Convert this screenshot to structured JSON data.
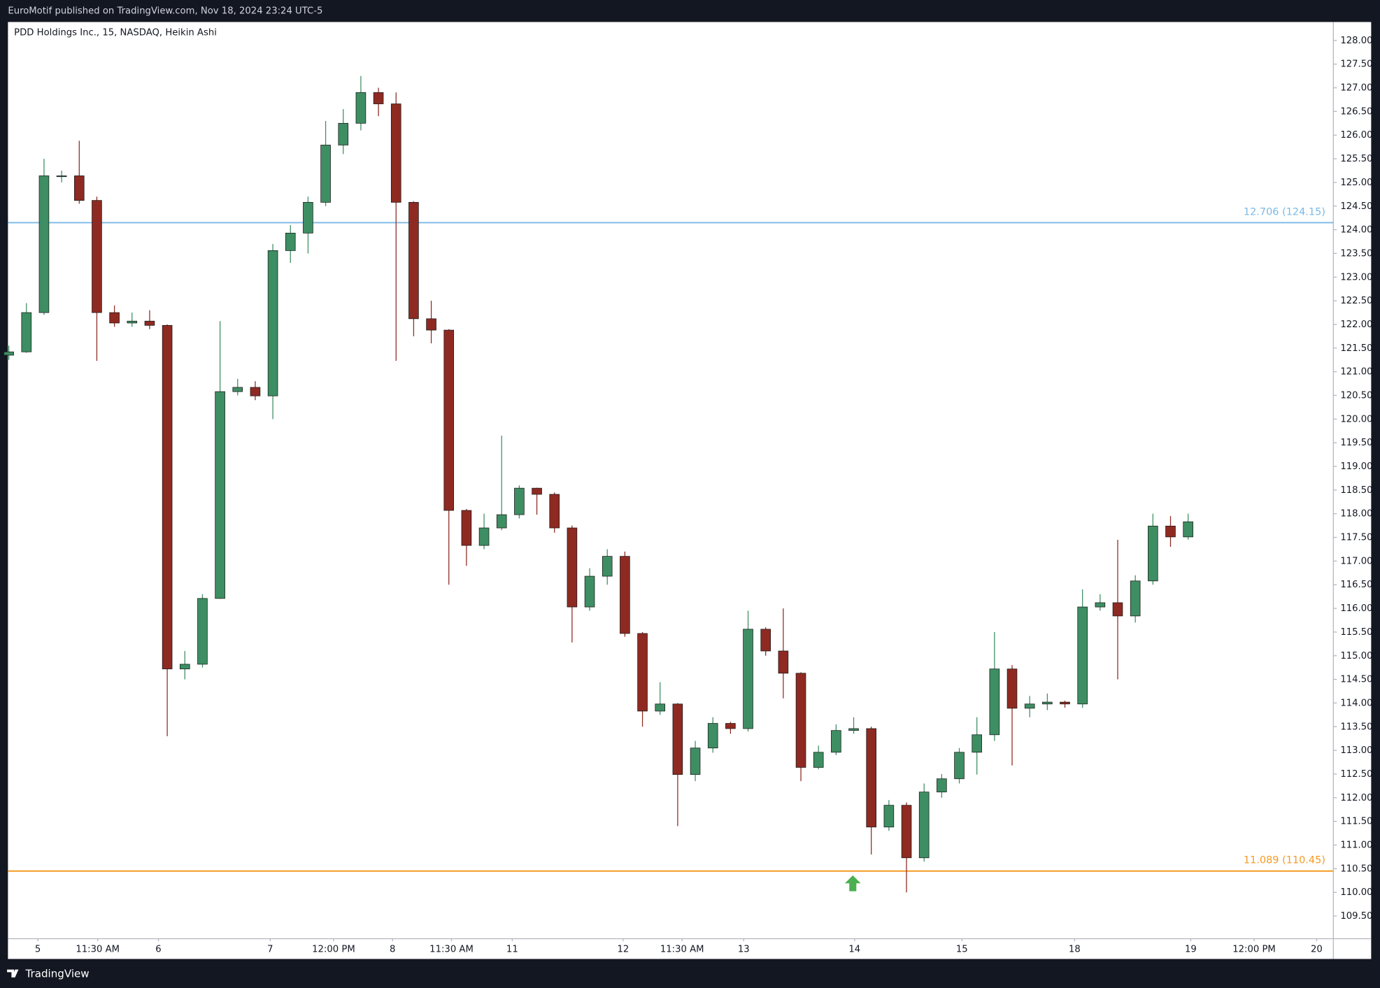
{
  "header": {
    "text": "EuroMotif published on TradingView.com, Nov 18, 2024 23:24 UTC-5"
  },
  "footer": {
    "brand": "TradingView"
  },
  "chart_data": {
    "type": "candlestick",
    "title": "PDD Holdings Inc., 15, NASDAQ, Heikin Ashi",
    "up_color": "#3e8e63",
    "down_color": "#8e2a22",
    "grid": false,
    "x": [
      0.1,
      2.1,
      4.1,
      6.1,
      8.1,
      10.1,
      12.1,
      14.1,
      16.1,
      18.1,
      20.1,
      22.1,
      24.1,
      26.1,
      28.1,
      30.1,
      32.1,
      34.1,
      36.1,
      38.1,
      40.1,
      42.1,
      44.1,
      46.1,
      48.1,
      50.1,
      52.1,
      54.1,
      56.1,
      58.1,
      60.1,
      62.1,
      64.1,
      66.1,
      68.1,
      70.1,
      72.1,
      74.1,
      76.1,
      78.1,
      80.1,
      82.1,
      84.1,
      86.1,
      88.1,
      90.1,
      92.1,
      94.1,
      96.1,
      98.1,
      100.1,
      102.1,
      104.1,
      106.1,
      108.1,
      110.1,
      112.1,
      114.1,
      116.1,
      118.1,
      120.1,
      122.1,
      124.1,
      126.1,
      128.1,
      130.1,
      132.1,
      134.1
    ],
    "open": [
      121.35,
      121.42,
      122.25,
      125.14,
      125.14,
      124.62,
      122.25,
      122.03,
      122.07,
      121.98,
      114.72,
      114.82,
      116.21,
      120.58,
      120.67,
      120.49,
      123.56,
      123.93,
      124.58,
      125.79,
      126.25,
      126.9,
      126.66,
      124.58,
      122.12,
      121.88,
      118.07,
      117.33,
      117.7,
      117.98,
      118.54,
      118.41,
      117.7,
      116.03,
      116.68,
      117.1,
      115.47,
      113.83,
      113.98,
      112.49,
      113.05,
      113.57,
      113.46,
      115.56,
      115.1,
      114.63,
      112.64,
      112.96,
      113.42,
      113.46,
      111.38,
      111.84,
      110.73,
      112.12,
      112.4,
      112.96,
      113.33,
      114.72,
      113.89,
      113.98,
      114.02,
      113.98,
      116.03,
      116.12,
      115.84,
      116.58,
      117.74,
      117.51
    ],
    "high": [
      121.55,
      122.45,
      125.5,
      125.25,
      125.88,
      124.7,
      122.4,
      122.25,
      122.3,
      122.0,
      115.1,
      116.3,
      122.07,
      120.85,
      120.8,
      123.7,
      124.1,
      124.7,
      126.3,
      126.55,
      127.25,
      127.0,
      126.9,
      124.6,
      122.5,
      121.9,
      118.1,
      118.0,
      119.65,
      118.6,
      118.55,
      118.45,
      117.75,
      116.85,
      117.25,
      117.2,
      115.5,
      114.44,
      114.0,
      113.2,
      113.7,
      113.6,
      115.95,
      115.6,
      116.0,
      114.65,
      113.1,
      113.55,
      113.7,
      113.5,
      111.95,
      111.9,
      112.3,
      112.5,
      113.05,
      113.7,
      115.5,
      114.8,
      114.15,
      114.2,
      114.05,
      116.4,
      116.3,
      117.45,
      116.7,
      118.0,
      117.95,
      118.0
    ],
    "low": [
      121.25,
      121.4,
      122.2,
      125.0,
      124.55,
      121.23,
      121.95,
      121.95,
      121.9,
      113.3,
      114.5,
      114.75,
      116.2,
      120.5,
      120.4,
      120.0,
      123.3,
      123.5,
      124.5,
      125.6,
      126.1,
      126.4,
      121.23,
      121.75,
      121.6,
      116.5,
      116.9,
      117.25,
      117.65,
      117.9,
      117.98,
      117.6,
      115.28,
      115.95,
      116.5,
      115.4,
      113.5,
      113.75,
      111.4,
      112.35,
      112.95,
      113.35,
      113.4,
      115.0,
      114.1,
      112.35,
      112.6,
      112.9,
      113.35,
      110.8,
      111.3,
      110.0,
      110.65,
      112.0,
      112.3,
      112.49,
      113.2,
      112.68,
      113.7,
      113.85,
      113.9,
      113.9,
      115.95,
      114.5,
      115.7,
      116.5,
      117.3,
      117.45
    ],
    "close": [
      121.42,
      122.25,
      125.14,
      125.14,
      124.62,
      122.25,
      122.03,
      122.07,
      121.98,
      114.72,
      114.82,
      116.21,
      120.58,
      120.67,
      120.49,
      123.56,
      123.93,
      124.58,
      125.79,
      126.25,
      126.9,
      126.66,
      124.58,
      122.12,
      121.88,
      118.07,
      117.33,
      117.7,
      117.98,
      118.54,
      118.41,
      117.7,
      116.03,
      116.68,
      117.1,
      115.47,
      113.83,
      113.98,
      112.49,
      113.05,
      113.57,
      113.46,
      115.56,
      115.1,
      114.63,
      112.64,
      112.96,
      113.42,
      113.46,
      111.38,
      111.84,
      110.73,
      112.12,
      112.4,
      112.96,
      113.33,
      114.72,
      113.89,
      113.98,
      114.02,
      113.98,
      116.03,
      116.12,
      115.84,
      116.58,
      117.74,
      117.51,
      117.83
    ],
    "xlim": [
      0,
      150.6
    ],
    "xticks": [
      {
        "value": 3.4,
        "label": "5"
      },
      {
        "value": 10.2,
        "label": "11:30 AM"
      },
      {
        "value": 17.1,
        "label": "6"
      },
      {
        "value": 29.8,
        "label": "7"
      },
      {
        "value": 37.0,
        "label": "12:00 PM"
      },
      {
        "value": 43.7,
        "label": "8"
      },
      {
        "value": 50.4,
        "label": "11:30 AM"
      },
      {
        "value": 57.3,
        "label": "11"
      },
      {
        "value": 69.9,
        "label": "12"
      },
      {
        "value": 76.6,
        "label": "11:30 AM"
      },
      {
        "value": 83.6,
        "label": "13"
      },
      {
        "value": 96.2,
        "label": "14"
      },
      {
        "value": 108.4,
        "label": "15"
      },
      {
        "value": 121.2,
        "label": "18"
      },
      {
        "value": 134.4,
        "label": "19"
      },
      {
        "value": 141.6,
        "label": "12:00 PM"
      },
      {
        "value": 148.7,
        "label": "20"
      }
    ],
    "ylim": [
      109.02,
      128.39
    ],
    "yticks": [
      {
        "value": 109.5,
        "label": "109.50"
      },
      {
        "value": 110,
        "label": "110.00"
      },
      {
        "value": 110.5,
        "label": "110.50"
      },
      {
        "value": 111,
        "label": "111.00"
      },
      {
        "value": 111.5,
        "label": "111.50"
      },
      {
        "value": 112,
        "label": "112.00"
      },
      {
        "value": 112.5,
        "label": "112.50"
      },
      {
        "value": 113,
        "label": "113.00"
      },
      {
        "value": 113.5,
        "label": "113.50"
      },
      {
        "value": 114,
        "label": "114.00"
      },
      {
        "value": 114.5,
        "label": "114.50"
      },
      {
        "value": 115,
        "label": "115.00"
      },
      {
        "value": 115.5,
        "label": "115.50"
      },
      {
        "value": 116,
        "label": "116.00"
      },
      {
        "value": 116.5,
        "label": "116.50"
      },
      {
        "value": 117,
        "label": "117.00"
      },
      {
        "value": 117.5,
        "label": "117.50"
      },
      {
        "value": 118,
        "label": "118.00"
      },
      {
        "value": 118.5,
        "label": "118.50"
      },
      {
        "value": 119,
        "label": "119.00"
      },
      {
        "value": 119.5,
        "label": "119.50"
      },
      {
        "value": 120,
        "label": "120.00"
      },
      {
        "value": 120.5,
        "label": "120.50"
      },
      {
        "value": 121,
        "label": "121.00"
      },
      {
        "value": 121.5,
        "label": "121.50"
      },
      {
        "value": 122,
        "label": "122.00"
      },
      {
        "value": 122.5,
        "label": "122.50"
      },
      {
        "value": 123,
        "label": "123.00"
      },
      {
        "value": 123.5,
        "label": "123.50"
      },
      {
        "value": 124,
        "label": "124.00"
      },
      {
        "value": 124.5,
        "label": "124.50"
      },
      {
        "value": 125,
        "label": "125.00"
      },
      {
        "value": 125.5,
        "label": "125.50"
      },
      {
        "value": 126,
        "label": "126.00"
      },
      {
        "value": 126.5,
        "label": "126.50"
      },
      {
        "value": 127,
        "label": "127.00"
      },
      {
        "value": 127.5,
        "label": "127.50"
      },
      {
        "value": 128,
        "label": "128.00"
      }
    ],
    "levels": [
      {
        "value": 124.15,
        "label": "12.706 (124.15)",
        "color": "#7ab9e6"
      },
      {
        "value": 110.45,
        "label": "11.089 (110.45)",
        "color": "#f59a23"
      }
    ]
  }
}
